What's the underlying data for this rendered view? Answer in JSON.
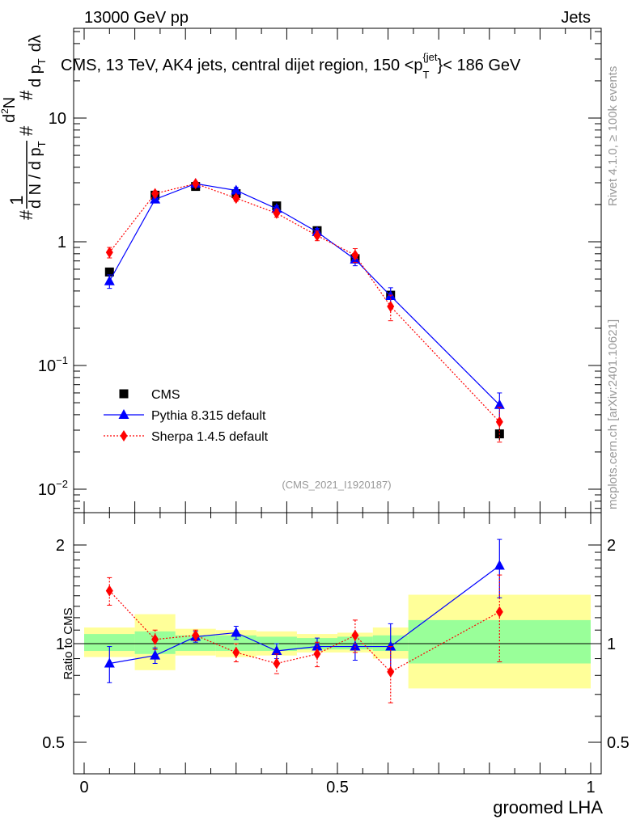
{
  "header": {
    "left": "13000 GeV pp",
    "right": "Jets",
    "title": "CMS, 13 TeV, AK4 jets, central dijet region, 150 < p_T^{jet} < 186 GeV",
    "title_pre": "CMS, 13 TeV, AK4 jets, central dijet region, 150 <p",
    "title_sub": "T",
    "title_sup": "{jet",
    "title_post": "}< 186 GeV"
  },
  "side_labels": {
    "rivet": "Rivet 4.1.0, ≥ 100k events",
    "mcplots": "mcplots.cern.ch [arXiv:2401.10621]"
  },
  "watermark": "(CMS_2021_I1920187)",
  "ratio_ylabel": "Ratio to CMS",
  "colors": {
    "cms": "#000000",
    "pythia": "#0000ff",
    "sherpa": "#ff0000",
    "band_yellow": "#ffff99",
    "band_green": "#99ff99"
  },
  "chart_data": [
    {
      "type": "line",
      "panel": "main",
      "yscale": "log",
      "ylabel": "1 / (dN/dp_T) · d²N / (dp_T dλ)",
      "ylabel_parts": {
        "p1": "#",
        "p2": "1",
        "p3": "d N / d p",
        "p4": "T",
        "p5": "#",
        "p6": "d",
        "p7": "2",
        "p8": "N",
        "p9": "#",
        "p10": "d p",
        "p11": "T",
        "p12": "d",
        "p13": "λ"
      },
      "xlim": [
        0,
        1
      ],
      "ylim": [
        0.007,
        70
      ],
      "ytick_labels": [
        {
          "value": 0.01,
          "base": "10",
          "exp": "−2"
        },
        {
          "value": 0.1,
          "base": "10",
          "exp": "−1"
        },
        {
          "value": 1,
          "base": "1",
          "exp": ""
        },
        {
          "value": 10,
          "base": "10",
          "exp": ""
        }
      ],
      "series": [
        {
          "name": "CMS",
          "marker": "square",
          "x": [
            0.05,
            0.14,
            0.22,
            0.3,
            0.38,
            0.46,
            0.535,
            0.605,
            0.82
          ],
          "xerr_bins": [
            [
              0,
              0.1
            ],
            [
              0.1,
              0.18
            ],
            [
              0.18,
              0.26
            ],
            [
              0.26,
              0.34
            ],
            [
              0.34,
              0.42
            ],
            [
              0.42,
              0.5
            ],
            [
              0.5,
              0.57
            ],
            [
              0.57,
              0.64
            ],
            [
              0.64,
              1.0
            ]
          ],
          "y": [
            0.57,
            2.38,
            2.8,
            2.45,
            1.95,
            1.23,
            0.73,
            0.37,
            0.028
          ],
          "yerr": [
            0.03,
            0.08,
            0.08,
            0.08,
            0.07,
            0.05,
            0.04,
            0.03,
            0.003
          ]
        },
        {
          "name": "Pythia 8.315 default",
          "marker": "triangle",
          "x": [
            0.05,
            0.14,
            0.22,
            0.3,
            0.38,
            0.46,
            0.535,
            0.605,
            0.82
          ],
          "y": [
            0.48,
            2.2,
            2.95,
            2.6,
            1.85,
            1.2,
            0.72,
            0.365,
            0.048
          ],
          "yerr": [
            0.06,
            0.1,
            0.1,
            0.15,
            0.1,
            0.08,
            0.08,
            0.06,
            0.012
          ]
        },
        {
          "name": "Sherpa 1.4.5 default",
          "marker": "diamond",
          "x": [
            0.05,
            0.14,
            0.22,
            0.3,
            0.38,
            0.46,
            0.535,
            0.605,
            0.82
          ],
          "y": [
            0.82,
            2.45,
            2.95,
            2.25,
            1.7,
            1.12,
            0.78,
            0.3,
            0.035
          ],
          "yerr": [
            0.08,
            0.12,
            0.1,
            0.12,
            0.12,
            0.1,
            0.1,
            0.07,
            0.011
          ]
        }
      ],
      "legend": {
        "position": "lower-left",
        "entries": [
          "CMS",
          "Pythia 8.315 default",
          "Sherpa 1.4.5 default"
        ]
      }
    },
    {
      "type": "line",
      "panel": "ratio",
      "yscale": "log",
      "xlabel": "groomed LHA",
      "ylabel": "Ratio to CMS",
      "xlim": [
        0,
        1
      ],
      "ylim": [
        0.42,
        2.4
      ],
      "xtick_labels": [
        {
          "value": 0,
          "label": "0"
        },
        {
          "value": 0.5,
          "label": "0.5"
        },
        {
          "value": 1,
          "label": "1"
        }
      ],
      "ytick_labels": [
        {
          "value": 0.5,
          "label": "0.5"
        },
        {
          "value": 1,
          "label": "1"
        },
        {
          "value": 2,
          "label": "2"
        }
      ],
      "bands": {
        "bins": [
          [
            0,
            0.1
          ],
          [
            0.1,
            0.18
          ],
          [
            0.18,
            0.26
          ],
          [
            0.26,
            0.34
          ],
          [
            0.34,
            0.42
          ],
          [
            0.42,
            0.5
          ],
          [
            0.5,
            0.57
          ],
          [
            0.57,
            0.64
          ],
          [
            0.64,
            1.0
          ]
        ],
        "yellow": [
          [
            0.91,
            1.12
          ],
          [
            0.83,
            1.23
          ],
          [
            0.92,
            1.11
          ],
          [
            0.91,
            1.1
          ],
          [
            0.92,
            1.09
          ],
          [
            0.94,
            1.07
          ],
          [
            0.94,
            1.08
          ],
          [
            0.9,
            1.12
          ],
          [
            0.73,
            1.41
          ]
        ],
        "green": [
          [
            0.95,
            1.07
          ],
          [
            0.93,
            1.09
          ],
          [
            0.95,
            1.06
          ],
          [
            0.95,
            1.06
          ],
          [
            0.95,
            1.05
          ],
          [
            0.96,
            1.04
          ],
          [
            0.96,
            1.05
          ],
          [
            0.95,
            1.06
          ],
          [
            0.87,
            1.18
          ]
        ]
      },
      "series": [
        {
          "name": "Pythia 8.315 default",
          "x": [
            0.05,
            0.14,
            0.22,
            0.3,
            0.38,
            0.46,
            0.535,
            0.605,
            0.82
          ],
          "y": [
            0.87,
            0.92,
            1.05,
            1.08,
            0.95,
            0.98,
            0.98,
            0.98,
            1.73
          ],
          "yerr": [
            0.11,
            0.05,
            0.04,
            0.05,
            0.05,
            0.06,
            0.09,
            0.17,
            0.35
          ]
        },
        {
          "name": "Sherpa 1.4.5 default",
          "x": [
            0.05,
            0.14,
            0.22,
            0.3,
            0.38,
            0.46,
            0.535,
            0.605,
            0.82
          ],
          "y": [
            1.45,
            1.03,
            1.06,
            0.94,
            0.87,
            0.93,
            1.06,
            0.82,
            1.25
          ],
          "yerr": [
            0.14,
            0.07,
            0.04,
            0.06,
            0.06,
            0.08,
            0.12,
            0.16,
            0.37
          ]
        }
      ]
    }
  ]
}
